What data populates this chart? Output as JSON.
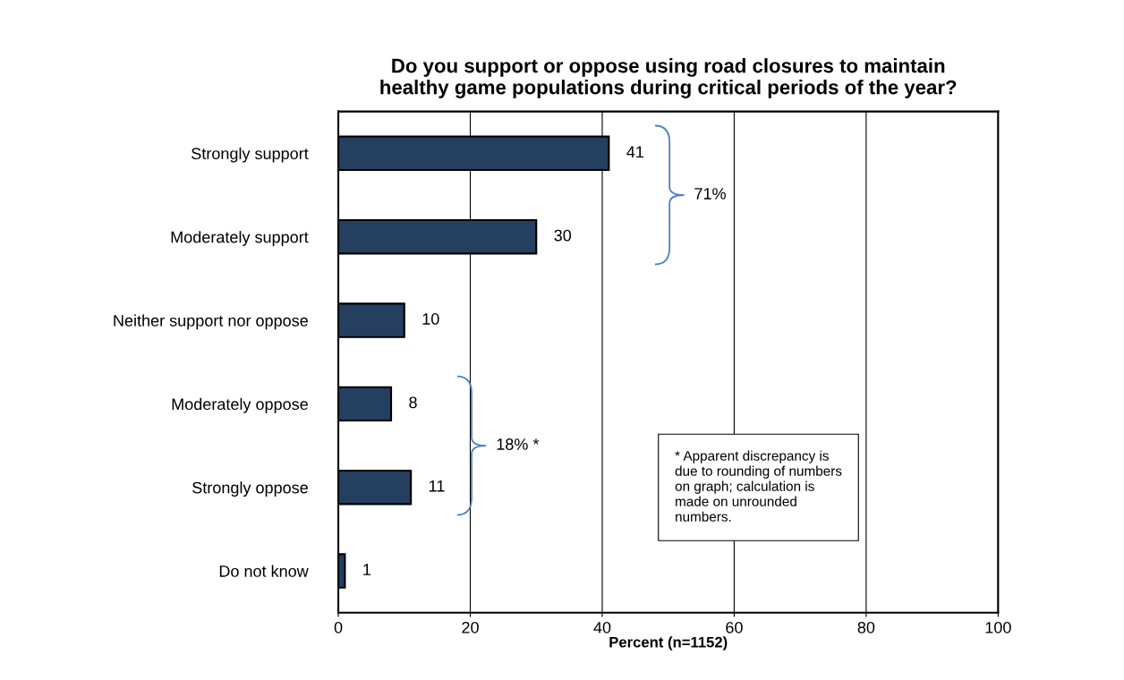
{
  "chart_data": {
    "type": "bar",
    "orientation": "horizontal",
    "title": "Do you support or oppose using road closures to maintain\nhealthy game populations during critical periods of the year?",
    "xlabel": "Percent (n=1152)",
    "categories": [
      "Strongly support",
      "Moderately support",
      "Neither support nor oppose",
      "Moderately oppose",
      "Strongly oppose",
      "Do not know"
    ],
    "values": [
      41,
      30,
      10,
      8,
      11,
      1
    ],
    "color": "#243f60",
    "data_labels": true,
    "xlim": [
      0,
      100
    ],
    "xticks": [
      0,
      20,
      40,
      60,
      80,
      100
    ],
    "grid": "x",
    "legend": false,
    "annotations": [
      "71%",
      "18% *",
      "* Apparent discrepancy is\ndue to rounding of numbers\non graph; calculation is\nmade on unrounded\nnumbers."
    ]
  }
}
